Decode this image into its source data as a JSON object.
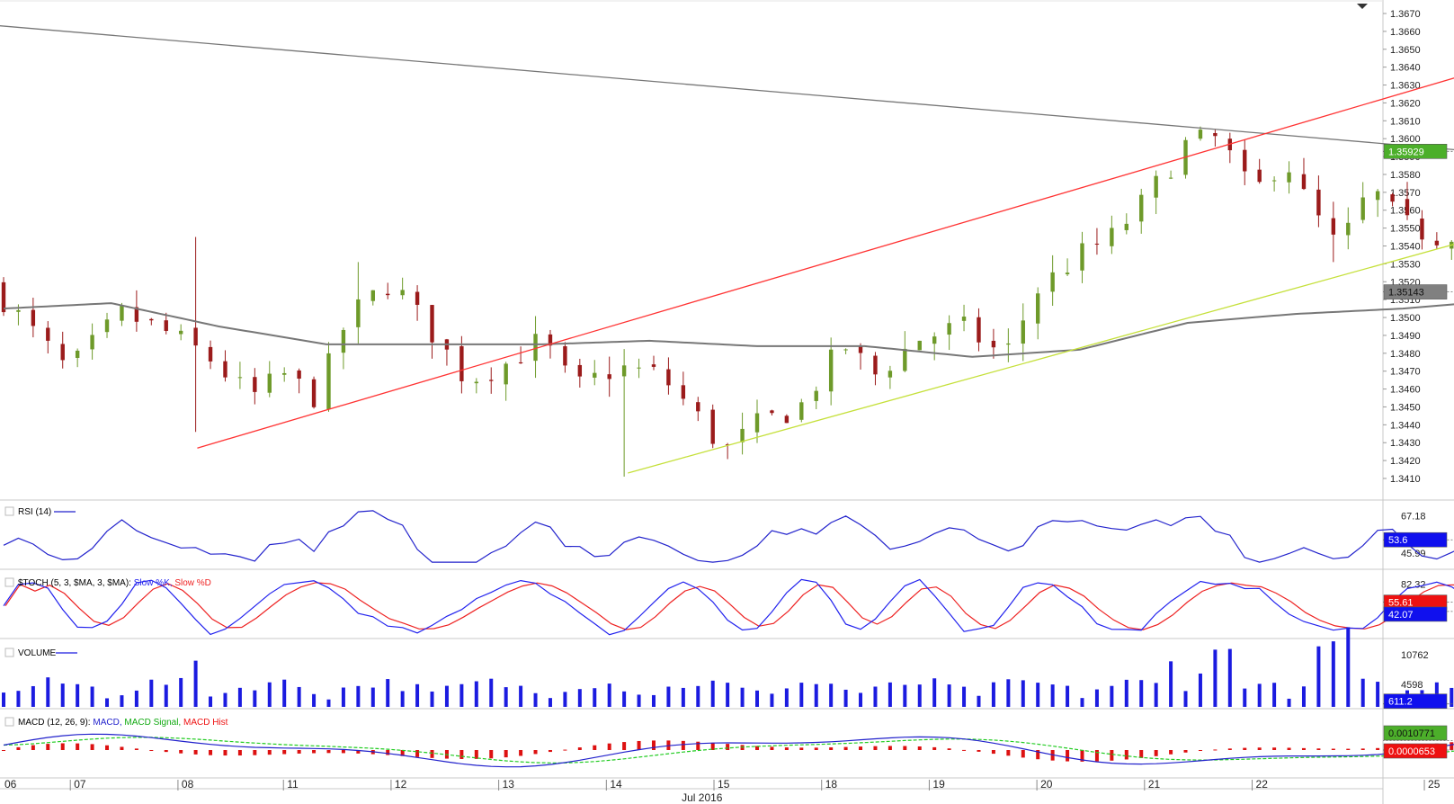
{
  "chart_data": [
    {
      "panel": "price",
      "type": "candlestick",
      "instrument_timeframe": "hourly",
      "ylim": [
        1.3405,
        1.3675
      ],
      "y_ticks": [
        "1.3670",
        "1.3660",
        "1.3650",
        "1.3640",
        "1.3630",
        "1.3620",
        "1.3610",
        "1.3600",
        "1.3590",
        "1.3580",
        "1.3570",
        "1.3560",
        "1.3550",
        "1.3540",
        "1.3530",
        "1.3520",
        "1.3510",
        "1.3500",
        "1.3490",
        "1.3480",
        "1.3470",
        "1.3460",
        "1.3450",
        "1.3440",
        "1.3430",
        "1.3420",
        "1.3410"
      ],
      "last_price_label": "1.35929",
      "last_price": 1.35929,
      "ma_label": "1.35143",
      "ma_value": 1.35143,
      "anchors": [
        {
          "day": 0.0,
          "o": 1.3518,
          "c": 1.351
        },
        {
          "day": 0.6,
          "o": 1.3508,
          "c": 1.347
        },
        {
          "day": 1.1,
          "o": 1.3488,
          "c": 1.3502
        },
        {
          "day": 1.5,
          "o": 1.3505,
          "c": 1.3492
        },
        {
          "day": 1.9,
          "o": 1.349,
          "c": 1.3478
        },
        {
          "day": 2.3,
          "o": 1.3472,
          "c": 1.3455
        },
        {
          "day": 2.6,
          "o": 1.3455,
          "c": 1.3468
        },
        {
          "day": 2.9,
          "o": 1.347,
          "c": 1.3455
        },
        {
          "day": 3.2,
          "o": 1.346,
          "c": 1.35
        },
        {
          "day": 3.6,
          "o": 1.35,
          "c": 1.352
        },
        {
          "day": 4.0,
          "o": 1.3515,
          "c": 1.349
        },
        {
          "day": 4.3,
          "o": 1.3485,
          "c": 1.3465
        },
        {
          "day": 4.7,
          "o": 1.347,
          "c": 1.3475
        },
        {
          "day": 5.0,
          "o": 1.3478,
          "c": 1.3488
        },
        {
          "day": 5.3,
          "o": 1.3485,
          "c": 1.346
        },
        {
          "day": 5.7,
          "o": 1.3462,
          "c": 1.3472
        },
        {
          "day": 6.1,
          "o": 1.3475,
          "c": 1.3468
        },
        {
          "day": 6.4,
          "o": 1.3465,
          "c": 1.3448
        },
        {
          "day": 6.7,
          "o": 1.343,
          "c": 1.3425
        },
        {
          "day": 7.0,
          "o": 1.3428,
          "c": 1.344
        },
        {
          "day": 7.4,
          "o": 1.344,
          "c": 1.345
        },
        {
          "day": 7.8,
          "o": 1.345,
          "c": 1.3485
        },
        {
          "day": 8.1,
          "o": 1.3482,
          "c": 1.3468
        },
        {
          "day": 8.5,
          "o": 1.347,
          "c": 1.3488
        },
        {
          "day": 8.9,
          "o": 1.3485,
          "c": 1.3495
        },
        {
          "day": 9.3,
          "o": 1.349,
          "c": 1.3478
        },
        {
          "day": 9.6,
          "o": 1.3482,
          "c": 1.3515
        },
        {
          "day": 10.0,
          "o": 1.3515,
          "c": 1.3535
        },
        {
          "day": 10.3,
          "o": 1.3535,
          "c": 1.3545
        },
        {
          "day": 10.6,
          "o": 1.3548,
          "c": 1.3565
        },
        {
          "day": 11.0,
          "o": 1.3575,
          "c": 1.3598
        },
        {
          "day": 11.3,
          "o": 1.359,
          "c": 1.36
        },
        {
          "day": 11.6,
          "o": 1.3585,
          "c": 1.3568
        },
        {
          "day": 11.9,
          "o": 1.357,
          "c": 1.359
        },
        {
          "day": 12.1,
          "o": 1.3585,
          "c": 1.3565
        },
        {
          "day": 12.4,
          "o": 1.356,
          "c": 1.3538
        },
        {
          "day": 12.7,
          "o": 1.3545,
          "c": 1.3572
        },
        {
          "day": 13.0,
          "o": 1.3568,
          "c": 1.3552
        },
        {
          "day": 13.3,
          "o": 1.355,
          "c": 1.3545
        },
        {
          "day": 13.6,
          "o": 1.3548,
          "c": 1.3552
        },
        {
          "day": 13.9,
          "o": 1.355,
          "c": 1.3562
        },
        {
          "day": 14.2,
          "o": 1.3565,
          "c": 1.3575
        },
        {
          "day": 14.5,
          "o": 1.358,
          "c": 1.3588
        },
        {
          "day": 14.75,
          "o": 1.359,
          "c": 1.3586
        },
        {
          "day": 14.9,
          "o": 1.359,
          "c": 1.362
        },
        {
          "day": 15.1,
          "o": 1.3613,
          "c": 1.3593
        }
      ],
      "ma_path": [
        {
          "day": 0.0,
          "v": 1.3505
        },
        {
          "day": 1.0,
          "v": 1.3508
        },
        {
          "day": 2.0,
          "v": 1.3495
        },
        {
          "day": 3.0,
          "v": 1.3485
        },
        {
          "day": 4.0,
          "v": 1.3485
        },
        {
          "day": 5.0,
          "v": 1.3485
        },
        {
          "day": 6.0,
          "v": 1.3487
        },
        {
          "day": 7.0,
          "v": 1.3484
        },
        {
          "day": 8.0,
          "v": 1.3484
        },
        {
          "day": 9.0,
          "v": 1.3478
        },
        {
          "day": 10.0,
          "v": 1.3482
        },
        {
          "day": 11.0,
          "v": 1.3497
        },
        {
          "day": 12.0,
          "v": 1.3502
        },
        {
          "day": 13.0,
          "v": 1.3505
        },
        {
          "day": 14.0,
          "v": 1.351
        },
        {
          "day": 15.1,
          "v": 1.35143
        }
      ],
      "trendlines": [
        {
          "name": "descending",
          "color": "#777777",
          "from": {
            "day": -0.4,
            "v": 1.3665
          },
          "to": {
            "day": 15.4,
            "v": 1.3584
          }
        },
        {
          "name": "upper-channel",
          "color": "#ff3333",
          "from": {
            "day": 1.8,
            "v": 1.3427
          },
          "to": {
            "day": 15.4,
            "v": 1.3668
          }
        },
        {
          "name": "lower-channel",
          "color": "#c5e03a",
          "from": {
            "day": 5.8,
            "v": 1.3413
          },
          "to": {
            "day": 15.4,
            "v": 1.3573
          }
        }
      ]
    },
    {
      "panel": "rsi",
      "label": "RSI (14)",
      "ticks": [
        "67.18",
        "45.99"
      ],
      "last_label": "53.6",
      "last": 53.6,
      "ylim": [
        38,
        75
      ]
    },
    {
      "panel": "stoch",
      "label_prefix": "$TOCH (5, 3, $MA, 3, $MA):",
      "k_name": "Slow %K,",
      "d_name": "Slow %D",
      "ticks": [
        "82.32"
      ],
      "k_label": "42.07",
      "d_label": "55.61",
      "k_last": 42.07,
      "d_last": 55.61,
      "ylim": [
        5,
        100
      ]
    },
    {
      "panel": "volume",
      "label": "VOLUME",
      "ticks": [
        "10762",
        "4598"
      ],
      "last_label": "611.2",
      "last": 611.2,
      "ylim": [
        0,
        13500
      ]
    },
    {
      "panel": "macd",
      "label_prefix": "MACD (12, 26, 9):",
      "macd_name": "MACD,",
      "signal_name": "MACD Signal,",
      "hist_name": "MACD Hist",
      "macd_label": "0.0010771",
      "hist_label": "0.0000653",
      "macd_last": 0.0010771,
      "hist_last": 6.53e-05
    }
  ],
  "x_axis": {
    "day_labels": [
      "06",
      "07",
      "08",
      "11",
      "12",
      "13",
      "14",
      "15",
      "18",
      "19",
      "20",
      "21",
      "22",
      "25"
    ],
    "month_label": "Jul 2016"
  },
  "colors": {
    "bull": "#6e9a2a",
    "bear": "#9b1b1b",
    "ma": "#777777",
    "rsi": "#2222cc",
    "stoch_k": "#2222ee",
    "stoch_d": "#ee2222",
    "volume": "#1b1be0",
    "macd": "#2222cc",
    "macd_signal": "#22cc22",
    "macd_hist": "#dd1111",
    "price_badge": "#4caf2a",
    "ma_badge": "#808080",
    "blue_badge": "#1010ee",
    "red_badge": "#ee1111"
  }
}
